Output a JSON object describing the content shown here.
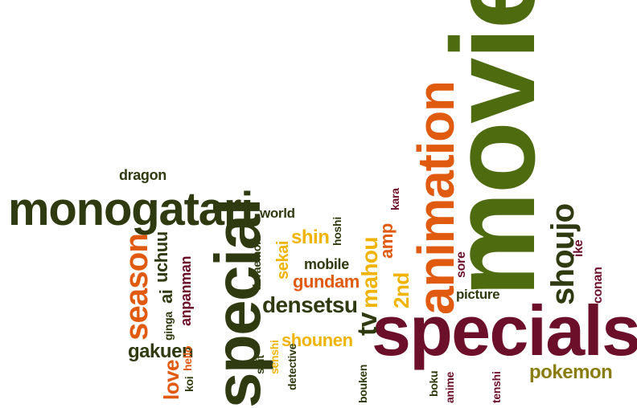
{
  "colors": {
    "olive": "#4f6b0f",
    "dark_olive": "#2f3a10",
    "maroon": "#6b0f2a",
    "orange": "#e05a10",
    "gold": "#f0b400",
    "olive_gold": "#8a7d10"
  },
  "words": {
    "movie": "movie",
    "specials": "specials",
    "animation": "animation",
    "special": "special",
    "monogatari": "monogatari",
    "shoujo": "shoujo",
    "season": "season",
    "densetsu": "densetsu",
    "mahou": "mahou",
    "gakuen": "gakuen",
    "pokemon": "pokemon",
    "gundam": "gundam",
    "shounen": "shounen",
    "shin": "shin",
    "love": "love",
    "tv": "tv",
    "dragon": "dragon",
    "world": "world",
    "mobile": "mobile",
    "amp": "amp",
    "2nd": "2nd",
    "uchuu": "uchuu",
    "ai": "ai",
    "anpanman": "anpanman",
    "sekai": "sekai",
    "picture": "picture",
    "conan": "conan",
    "ike": "ike",
    "sore": "sore",
    "kara": "kara",
    "hoshi": "hoshi",
    "doraemon": "doraemon",
    "ginga": "ginga",
    "hello": "hello",
    "koi": "koi",
    "suit": "suit",
    "senshi": "senshi",
    "detective": "detective",
    "bouken": "bouken",
    "boku": "boku",
    "anime": "anime",
    "tenshi": "tenshi"
  }
}
